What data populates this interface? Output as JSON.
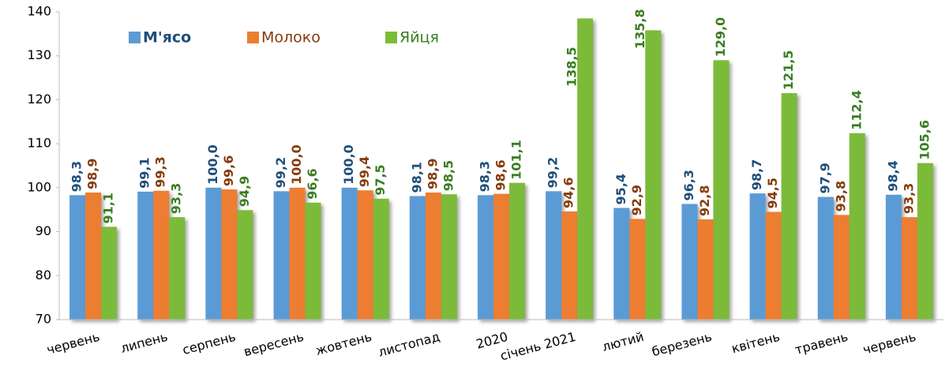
{
  "chart_data": {
    "type": "bar",
    "categories": [
      "червень",
      "липень",
      "серпень",
      "вересень",
      "жовтень",
      "листопад",
      "2020",
      "січень 2021",
      "лютий",
      "березень",
      "квітень",
      "травень",
      "червень"
    ],
    "series": [
      {
        "name": "М'ясо",
        "color": "#5b9bd5",
        "label_color": "#1f4e79",
        "values": [
          98.3,
          99.1,
          100.0,
          99.2,
          100.0,
          98.1,
          98.3,
          99.2,
          95.4,
          96.3,
          98.7,
          97.9,
          98.4
        ],
        "value_labels": [
          "98,3",
          "99,1",
          "100,0",
          "99,2",
          "100,0",
          "98,1",
          "98,3",
          "99,2",
          "95,4",
          "96,3",
          "98,7",
          "97,9",
          "98,4"
        ]
      },
      {
        "name": "Молоко",
        "color": "#ed7d31",
        "label_color": "#843c0c",
        "values": [
          98.9,
          99.3,
          99.6,
          100.0,
          99.4,
          98.9,
          98.6,
          94.6,
          92.9,
          92.8,
          94.5,
          93.8,
          93.3
        ],
        "value_labels": [
          "98,9",
          "99,3",
          "99,6",
          "100,0",
          "99,4",
          "98,9",
          "98,6",
          "94,6",
          "92,9",
          "92,8",
          "94,5",
          "93,8",
          "93,3"
        ]
      },
      {
        "name": "Яйця",
        "color": "#7cbb3a",
        "label_color": "#3a7d22",
        "values": [
          91.1,
          93.3,
          94.9,
          96.6,
          97.5,
          98.5,
          101.1,
          138.5,
          135.8,
          129.0,
          121.5,
          112.4,
          105.6
        ],
        "value_labels": [
          "91,1",
          "93,3",
          "94,9",
          "96,6",
          "97,5",
          "98,5",
          "101,1",
          "138,5",
          "135,8",
          "129,0",
          "121,5",
          "112,4",
          "105,6"
        ]
      }
    ],
    "ylim": [
      70,
      140
    ],
    "yticks": [
      70,
      80,
      90,
      100,
      110,
      120,
      130,
      140
    ],
    "grid": false,
    "legend": "top-left"
  }
}
